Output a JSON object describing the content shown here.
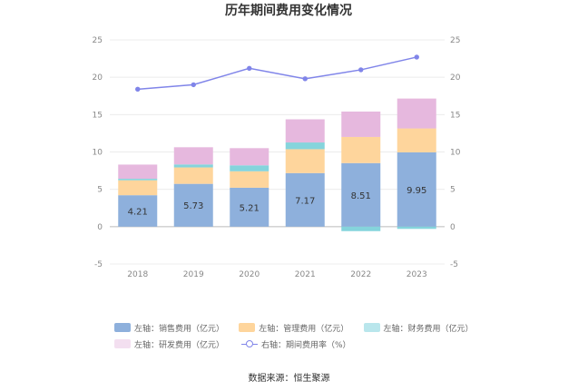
{
  "chart_data": {
    "type": "bar",
    "title": "历年期间费用变化情况",
    "categories": [
      "2018",
      "2019",
      "2020",
      "2021",
      "2022",
      "2023"
    ],
    "ylim": [
      -5,
      25
    ],
    "yticks": [
      "-5",
      "0",
      "5",
      "10",
      "15",
      "20",
      "25"
    ],
    "y2lim": [
      -5,
      25
    ],
    "y2ticks": [
      "-5",
      "0",
      "5",
      "10",
      "15",
      "20",
      "25"
    ],
    "stacked": true,
    "series": [
      {
        "name": "左轴：销售费用（亿元）",
        "color": "#8eb0dc",
        "values": [
          4.21,
          5.73,
          5.21,
          7.17,
          8.51,
          9.95
        ],
        "labels": [
          "4.21",
          "5.73",
          "5.21",
          "7.17",
          "8.51",
          "9.95"
        ]
      },
      {
        "name": "左轴：管理费用（亿元）",
        "color": "#fed59c",
        "values": [
          2.0,
          2.2,
          2.2,
          3.2,
          3.5,
          3.2
        ]
      },
      {
        "name": "左轴：财务费用（亿元）",
        "color": "#85d4dc",
        "values": [
          0.2,
          0.4,
          0.8,
          0.9,
          -0.6,
          -0.3
        ]
      },
      {
        "name": "左轴：研发费用（亿元）",
        "color": "#e6b8de",
        "values": [
          1.9,
          2.3,
          2.3,
          3.1,
          3.4,
          4.0
        ]
      },
      {
        "name": "右轴：期间费用率（%）",
        "color": "#8085e9",
        "type": "line",
        "axis": "right",
        "values": [
          18.4,
          19.0,
          21.2,
          19.8,
          21.0,
          22.7
        ]
      }
    ],
    "source": "数据来源：恒生聚源"
  }
}
